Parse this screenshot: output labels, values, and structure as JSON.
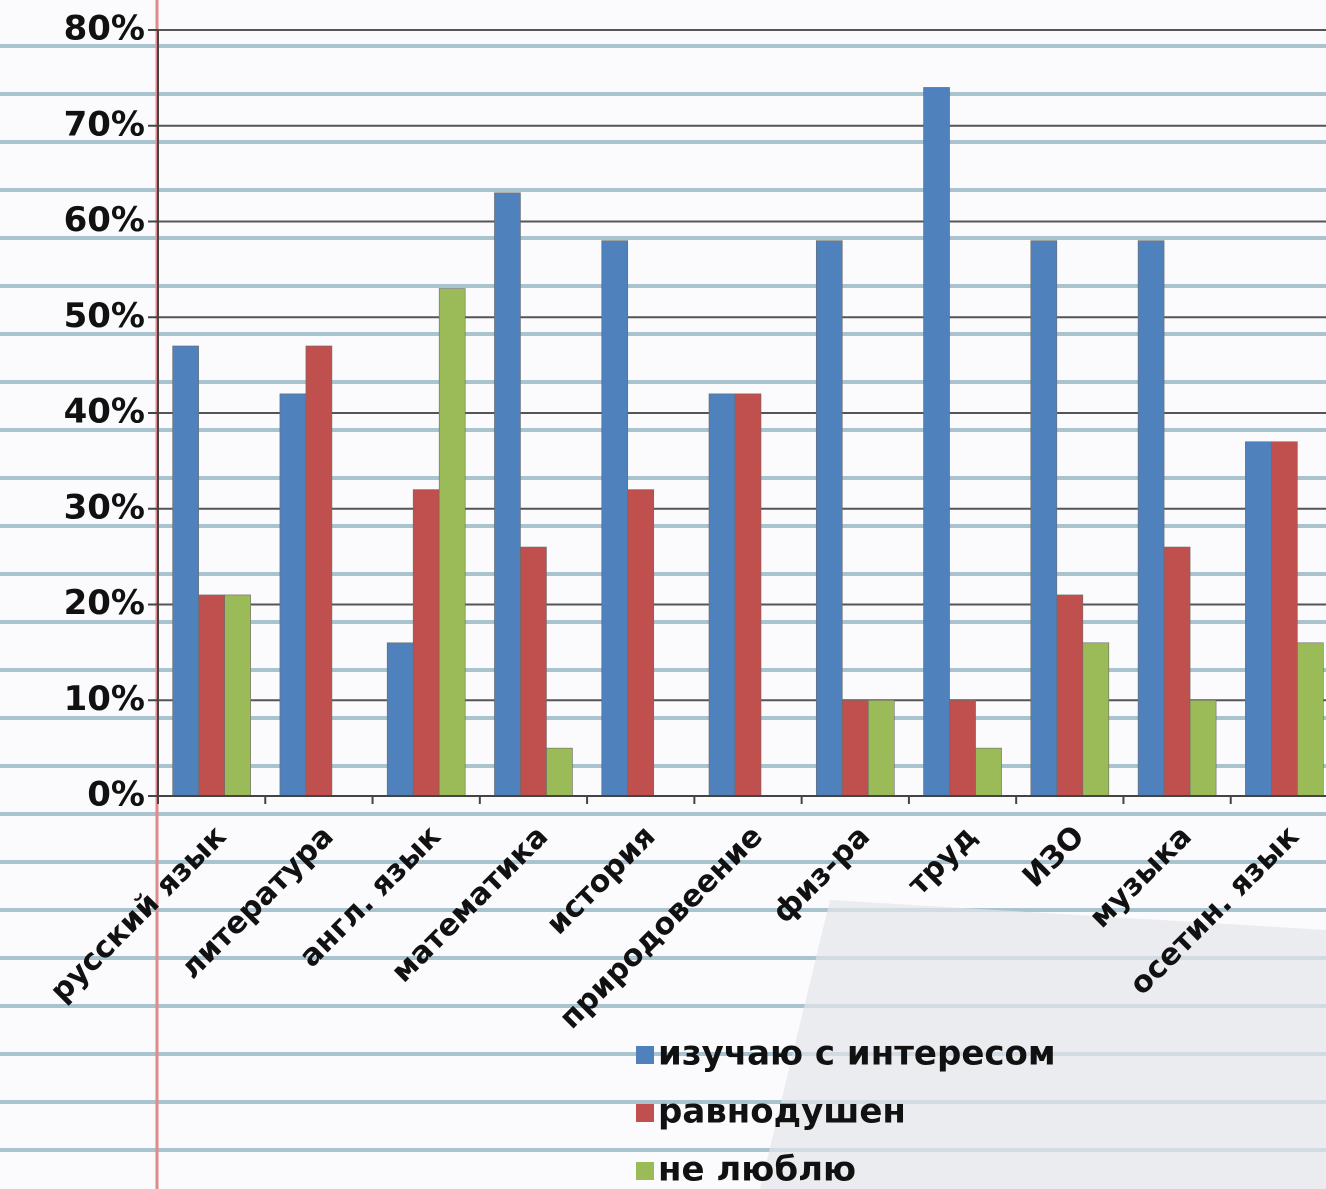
{
  "chart_data": {
    "type": "bar",
    "categories": [
      "русский язык",
      "литература",
      "англ. язык",
      "математика",
      "история",
      "природовеение",
      "физ-ра",
      "труд",
      "ИЗО",
      "музыка",
      "осетин. язык"
    ],
    "series": [
      {
        "name": "изучаю с интересом",
        "color": "#4f81bd",
        "values": [
          47,
          42,
          16,
          63,
          58,
          42,
          58,
          74,
          58,
          58,
          37
        ]
      },
      {
        "name": "равнодушен",
        "color": "#c0504d",
        "values": [
          21,
          47,
          32,
          26,
          32,
          42,
          10,
          10,
          21,
          26,
          37
        ]
      },
      {
        "name": "не люблю",
        "color": "#9bbb59",
        "values": [
          21,
          0,
          53,
          5,
          0,
          0,
          10,
          5,
          16,
          10,
          16
        ]
      }
    ],
    "ylim": [
      0,
      80
    ],
    "yticks": [
      {
        "value": 0,
        "label": "0%"
      },
      {
        "value": 10,
        "label": "10%"
      },
      {
        "value": 20,
        "label": "20%"
      },
      {
        "value": 30,
        "label": "30%"
      },
      {
        "value": 40,
        "label": "40%"
      },
      {
        "value": 50,
        "label": "50%"
      },
      {
        "value": 60,
        "label": "60%"
      },
      {
        "value": 70,
        "label": "70%"
      },
      {
        "value": 80,
        "label": "80%"
      }
    ],
    "grid": true
  }
}
